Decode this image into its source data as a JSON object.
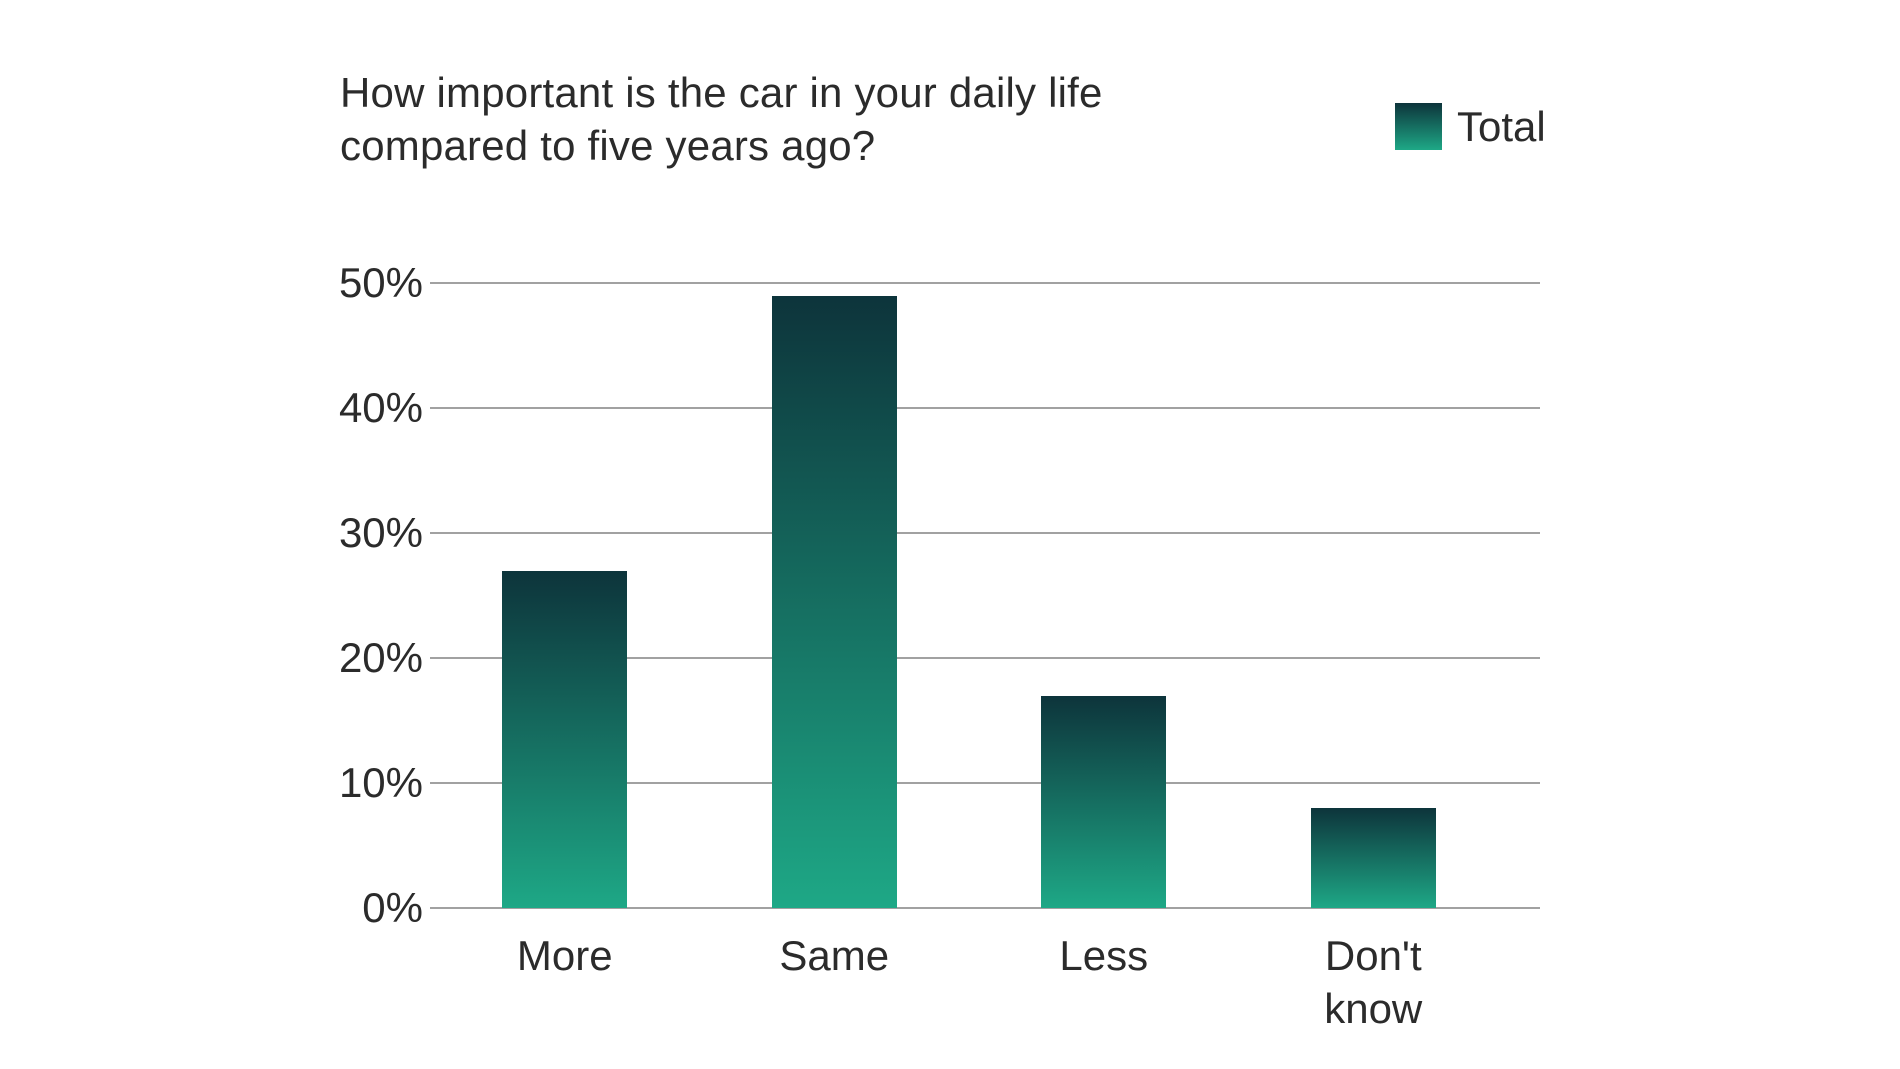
{
  "chart_data": {
    "type": "bar",
    "title": "How important is the car in your daily life compared to five years ago?",
    "title_lines": [
      "How important is the car in your daily life",
      "compared to five years ago?"
    ],
    "legend": {
      "position": "top-right",
      "entries": [
        {
          "label": "Total"
        }
      ]
    },
    "categories": [
      "More",
      "Same",
      "Less",
      "Don't know"
    ],
    "category_label_lines": [
      [
        "More"
      ],
      [
        "Same"
      ],
      [
        "Less"
      ],
      [
        "Don't",
        "know"
      ]
    ],
    "series": [
      {
        "name": "Total",
        "values": [
          27,
          49,
          17,
          8
        ]
      }
    ],
    "unit": "%",
    "xlabel": "",
    "ylabel": "",
    "ylim": [
      0,
      50
    ],
    "ytick_step": 10,
    "yticks": [
      "0%",
      "10%",
      "20%",
      "30%",
      "40%",
      "50%"
    ],
    "grid": "horizontal",
    "colors": {
      "bar_gradient_top": "#0d343b",
      "bar_gradient_bottom": "#1ea886",
      "gridline": "#a1a1a1",
      "text": "#2b2b2b",
      "background": "#ffffff"
    }
  }
}
